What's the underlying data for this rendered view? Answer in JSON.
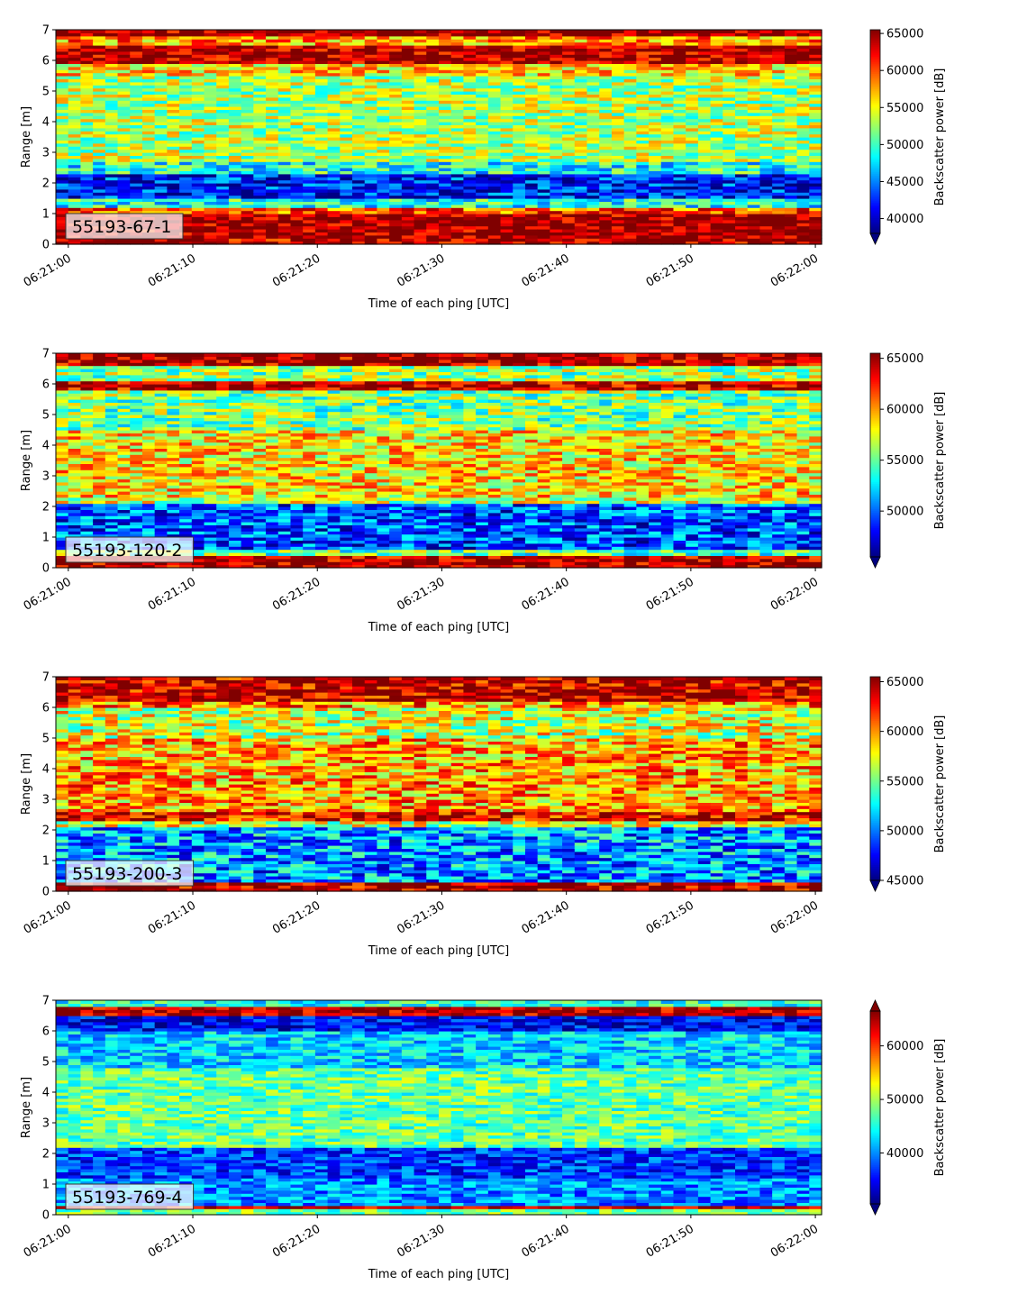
{
  "chart_data": [
    {
      "type": "heatmap",
      "label": "55193-67-1",
      "xlabel": "Time of each ping [UTC]",
      "ylabel": "Range [m]",
      "x_ticks": [
        "06:21:00",
        "06:21:10",
        "06:21:20",
        "06:21:30",
        "06:21:40",
        "06:21:50",
        "06:22:00"
      ],
      "x_range": [
        "06:20:59",
        "06:22:00.5"
      ],
      "y_ticks": [
        0,
        1,
        2,
        3,
        4,
        5,
        6,
        7
      ],
      "ylim": [
        0,
        7
      ],
      "colorbar": {
        "label": "Backscatter power [dB]",
        "ticks": [
          40000,
          45000,
          50000,
          55000,
          60000,
          65000
        ],
        "range": [
          38000,
          65500
        ],
        "colormap": "jet",
        "extend": "min"
      },
      "bands": [
        {
          "y": [
            0.0,
            0.25
          ],
          "value": 64000
        },
        {
          "y": [
            0.25,
            1.0
          ],
          "value": 65000
        },
        {
          "y": [
            1.0,
            1.2
          ],
          "value": 60000
        },
        {
          "y": [
            1.2,
            1.5
          ],
          "value": 49000
        },
        {
          "y": [
            1.5,
            2.3
          ],
          "value": 42000
        },
        {
          "y": [
            2.3,
            2.7
          ],
          "value": 49000
        },
        {
          "y": [
            2.7,
            5.5
          ],
          "value": 53000
        },
        {
          "y": [
            5.5,
            5.9
          ],
          "value": 56000
        },
        {
          "y": [
            5.9,
            6.5
          ],
          "value": 64500
        },
        {
          "y": [
            6.5,
            6.8
          ],
          "value": 58000
        },
        {
          "y": [
            6.8,
            7.0
          ],
          "value": 65000
        }
      ],
      "noise": 5000
    },
    {
      "type": "heatmap",
      "label": "55193-120-2",
      "xlabel": "Time of each ping [UTC]",
      "ylabel": "Range [m]",
      "x_ticks": [
        "06:21:00",
        "06:21:10",
        "06:21:20",
        "06:21:30",
        "06:21:40",
        "06:21:50",
        "06:22:00"
      ],
      "x_range": [
        "06:20:59",
        "06:22:00.5"
      ],
      "y_ticks": [
        0,
        1,
        2,
        3,
        4,
        5,
        6,
        7
      ],
      "ylim": [
        0,
        7
      ],
      "colorbar": {
        "label": "Backscatter power [dB]",
        "ticks": [
          50000,
          55000,
          60000,
          65000
        ],
        "range": [
          45500,
          65500
        ],
        "colormap": "jet",
        "extend": "min"
      },
      "bands": [
        {
          "y": [
            0.0,
            0.4
          ],
          "value": 65000
        },
        {
          "y": [
            0.4,
            0.6
          ],
          "value": 55000
        },
        {
          "y": [
            0.6,
            2.1
          ],
          "value": 49500
        },
        {
          "y": [
            2.1,
            2.3
          ],
          "value": 57000
        },
        {
          "y": [
            2.3,
            4.5
          ],
          "value": 58500
        },
        {
          "y": [
            4.5,
            5.8
          ],
          "value": 55500
        },
        {
          "y": [
            5.8,
            6.1
          ],
          "value": 64500
        },
        {
          "y": [
            6.1,
            6.6
          ],
          "value": 56000
        },
        {
          "y": [
            6.6,
            7.0
          ],
          "value": 65000
        }
      ],
      "noise": 4000
    },
    {
      "type": "heatmap",
      "label": "55193-200-3",
      "xlabel": "Time of each ping [UTC]",
      "ylabel": "Range [m]",
      "x_ticks": [
        "06:21:00",
        "06:21:10",
        "06:21:20",
        "06:21:30",
        "06:21:40",
        "06:21:50",
        "06:22:00"
      ],
      "x_range": [
        "06:20:59",
        "06:22:00.5"
      ],
      "y_ticks": [
        0,
        1,
        2,
        3,
        4,
        5,
        6,
        7
      ],
      "ylim": [
        0,
        7
      ],
      "colorbar": {
        "label": "Backscatter power [dB]",
        "ticks": [
          45000,
          50000,
          55000,
          60000,
          65000
        ],
        "range": [
          45000,
          65500
        ],
        "colormap": "jet",
        "extend": "min"
      },
      "bands": [
        {
          "y": [
            0.0,
            0.35
          ],
          "value": 65000
        },
        {
          "y": [
            0.35,
            2.1
          ],
          "value": 50500
        },
        {
          "y": [
            2.1,
            2.3
          ],
          "value": 57000
        },
        {
          "y": [
            2.3,
            2.6
          ],
          "value": 63500
        },
        {
          "y": [
            2.6,
            5.0
          ],
          "value": 59500
        },
        {
          "y": [
            5.0,
            6.0
          ],
          "value": 57000
        },
        {
          "y": [
            6.0,
            6.2
          ],
          "value": 60000
        },
        {
          "y": [
            6.2,
            7.0
          ],
          "value": 64500
        }
      ],
      "noise": 4500
    },
    {
      "type": "heatmap",
      "label": "55193-769-4",
      "xlabel": "Time of each ping [UTC]",
      "ylabel": "Range [m]",
      "x_ticks": [
        "06:21:00",
        "06:21:10",
        "06:21:20",
        "06:21:30",
        "06:21:40",
        "06:21:50",
        "06:22:00"
      ],
      "x_range": [
        "06:20:59",
        "06:22:00.5"
      ],
      "y_ticks": [
        0,
        1,
        2,
        3,
        4,
        5,
        6,
        7
      ],
      "ylim": [
        0,
        7
      ],
      "colorbar": {
        "label": "Backscatter power [dB]",
        "ticks": [
          40000,
          50000,
          60000
        ],
        "range": [
          30500,
          66500
        ],
        "colormap": "jet",
        "extend": "both"
      },
      "bands": [
        {
          "y": [
            0.0,
            0.2
          ],
          "value": 48000
        },
        {
          "y": [
            0.2,
            0.35
          ],
          "value": 64000
        },
        {
          "y": [
            0.35,
            1.2
          ],
          "value": 40000
        },
        {
          "y": [
            1.2,
            2.2
          ],
          "value": 37000
        },
        {
          "y": [
            2.2,
            4.8
          ],
          "value": 47500
        },
        {
          "y": [
            4.8,
            6.0
          ],
          "value": 42500
        },
        {
          "y": [
            6.0,
            6.5
          ],
          "value": 35000
        },
        {
          "y": [
            6.5,
            6.8
          ],
          "value": 64000
        },
        {
          "y": [
            6.8,
            7.0
          ],
          "value": 45000
        }
      ],
      "noise": 5000
    }
  ]
}
